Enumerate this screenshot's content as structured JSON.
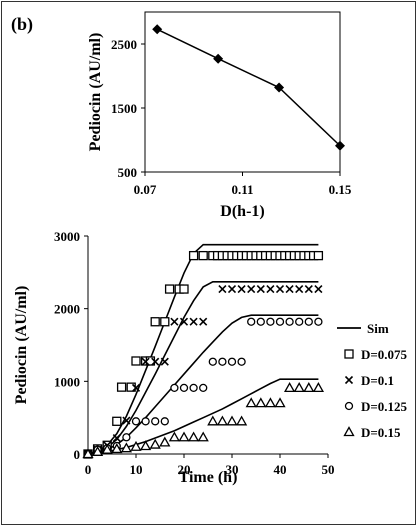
{
  "panel_label": "(b)",
  "chart_data": [
    {
      "type": "line",
      "title": "",
      "xlabel": "D(h-1)",
      "ylabel": "Pediocin (AU/ml)",
      "xlim": [
        0.07,
        0.15
      ],
      "ylim": [
        500,
        3000
      ],
      "xticks": [
        "0.07",
        "0.11",
        "0.15"
      ],
      "xtick_values": [
        0.07,
        0.11,
        0.15
      ],
      "yticks": [
        "500",
        "1500",
        "2500"
      ],
      "ytick_values": [
        500,
        1500,
        2500
      ],
      "marker": "diamond",
      "x": [
        0.075,
        0.1,
        0.125,
        0.15
      ],
      "y": [
        2730,
        2270,
        1820,
        910
      ]
    },
    {
      "type": "scatter",
      "title": "",
      "xlabel": "Time (h)",
      "ylabel": "Pediocin (AU/ml)",
      "xlim": [
        0,
        50
      ],
      "ylim": [
        0,
        3000
      ],
      "xticks": [
        "0",
        "10",
        "20",
        "30",
        "40",
        "50"
      ],
      "xtick_values": [
        0,
        10,
        20,
        30,
        40,
        50
      ],
      "yticks": [
        "0",
        "1000",
        "2000",
        "3000"
      ],
      "ytick_values": [
        0,
        1000,
        2000,
        3000
      ],
      "legend_position": "right",
      "sim_label": "Sim",
      "simulation": [
        {
          "x": [
            0,
            2,
            4,
            6,
            8,
            10,
            12,
            14,
            16,
            18,
            20,
            22,
            24,
            26,
            28,
            30,
            32,
            34,
            36,
            38,
            40,
            42,
            44,
            46,
            48
          ],
          "y": [
            0,
            40,
            120,
            280,
            520,
            820,
            1150,
            1480,
            1820,
            2160,
            2490,
            2760,
            2880,
            2880,
            2880,
            2880,
            2880,
            2880,
            2880,
            2880,
            2880,
            2880,
            2880,
            2880,
            2880
          ]
        },
        {
          "x": [
            0,
            2,
            4,
            6,
            8,
            10,
            12,
            14,
            16,
            18,
            20,
            22,
            24,
            26,
            28,
            30,
            32,
            34,
            36,
            38,
            40,
            42,
            44,
            46,
            48
          ],
          "y": [
            0,
            30,
            90,
            200,
            380,
            600,
            850,
            1100,
            1360,
            1620,
            1880,
            2110,
            2300,
            2370,
            2370,
            2370,
            2370,
            2370,
            2370,
            2370,
            2370,
            2370,
            2370,
            2370,
            2370
          ]
        },
        {
          "x": [
            0,
            2,
            4,
            6,
            8,
            10,
            12,
            14,
            16,
            18,
            20,
            22,
            24,
            26,
            28,
            30,
            32,
            34,
            36,
            38,
            40,
            42,
            44,
            46,
            48
          ],
          "y": [
            0,
            20,
            60,
            130,
            230,
            360,
            500,
            650,
            800,
            950,
            1100,
            1250,
            1400,
            1540,
            1680,
            1800,
            1880,
            1910,
            1910,
            1910,
            1910,
            1910,
            1910,
            1910,
            1910
          ]
        },
        {
          "x": [
            0,
            2,
            4,
            6,
            8,
            10,
            12,
            14,
            16,
            18,
            20,
            22,
            24,
            26,
            28,
            30,
            32,
            34,
            36,
            38,
            40,
            42,
            44,
            46,
            48
          ],
          "y": [
            0,
            10,
            30,
            60,
            90,
            130,
            170,
            220,
            270,
            320,
            380,
            440,
            500,
            560,
            620,
            690,
            760,
            830,
            900,
            970,
            1030,
            1030,
            1030,
            1030,
            1030
          ]
        }
      ],
      "series": [
        {
          "name": "D=0.075",
          "marker": "square",
          "x": [
            0,
            2,
            4,
            6,
            7,
            9,
            10,
            12,
            13,
            14,
            16,
            17,
            19,
            20,
            22,
            24,
            26,
            27,
            28,
            29,
            30,
            31,
            32,
            33,
            34,
            35,
            36,
            37,
            38,
            39,
            40,
            41,
            42,
            43,
            44,
            45,
            46,
            47,
            48
          ],
          "y": [
            0,
            70,
            120,
            450,
            920,
            920,
            1280,
            1280,
            1280,
            1820,
            1820,
            2270,
            2270,
            2270,
            2730,
            2730,
            2730,
            2730,
            2730,
            2730,
            2730,
            2730,
            2730,
            2730,
            2730,
            2730,
            2730,
            2730,
            2730,
            2730,
            2730,
            2730,
            2730,
            2730,
            2730,
            2730,
            2730,
            2730,
            2730
          ]
        },
        {
          "name": "D=0.1",
          "marker": "x",
          "x": [
            0,
            2,
            4,
            6,
            8,
            10,
            12,
            14,
            16,
            18,
            20,
            22,
            24,
            28,
            30,
            32,
            34,
            36,
            38,
            40,
            42,
            44,
            46,
            48
          ],
          "y": [
            0,
            60,
            120,
            220,
            460,
            910,
            1270,
            1270,
            1270,
            1820,
            1820,
            1820,
            1820,
            2270,
            2270,
            2270,
            2270,
            2270,
            2270,
            2270,
            2270,
            2270,
            2270,
            2270
          ]
        },
        {
          "name": "D=0.125",
          "marker": "circle",
          "x": [
            0,
            2,
            4,
            6,
            8,
            10,
            12,
            14,
            16,
            18,
            20,
            22,
            24,
            26,
            28,
            30,
            32,
            34,
            36,
            38,
            40,
            42,
            44,
            46,
            48
          ],
          "y": [
            0,
            60,
            80,
            110,
            230,
            450,
            450,
            450,
            450,
            910,
            910,
            910,
            910,
            1270,
            1270,
            1270,
            1270,
            1820,
            1820,
            1820,
            1820,
            1820,
            1820,
            1820,
            1820
          ]
        },
        {
          "name": "D=0.15",
          "marker": "triangle",
          "x": [
            0,
            2,
            4,
            6,
            8,
            10,
            12,
            14,
            16,
            18,
            20,
            22,
            24,
            26,
            28,
            30,
            32,
            34,
            36,
            38,
            40,
            42,
            44,
            46,
            48
          ],
          "y": [
            0,
            30,
            60,
            70,
            80,
            100,
            110,
            130,
            160,
            230,
            230,
            230,
            230,
            450,
            450,
            450,
            450,
            700,
            700,
            700,
            700,
            910,
            910,
            910,
            910
          ]
        }
      ]
    }
  ]
}
